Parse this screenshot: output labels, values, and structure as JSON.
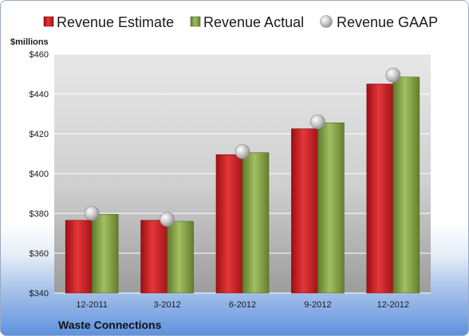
{
  "chart_data": {
    "type": "bar",
    "company": "Waste Connections",
    "ylabel": "$millions",
    "ylim": [
      340,
      460
    ],
    "ytick_values": [
      340,
      360,
      380,
      400,
      420,
      440,
      460
    ],
    "ytick_labels": [
      "$340",
      "$360",
      "$380",
      "$400",
      "$420",
      "$440",
      "$460"
    ],
    "categories": [
      "12-2011",
      "3-2012",
      "6-2012",
      "9-2012",
      "12-2012"
    ],
    "series": [
      {
        "name": "Revenue Estimate",
        "type": "bar",
        "color": "#d9232a",
        "values": [
          376.5,
          376.5,
          409.5,
          422.5,
          445.0
        ]
      },
      {
        "name": "Revenue Actual",
        "type": "bar",
        "color": "#8aa74a",
        "values": [
          379.5,
          376.0,
          410.5,
          425.5,
          448.5
        ]
      },
      {
        "name": "Revenue GAAP",
        "type": "marker",
        "color": "#c8c8c8",
        "values": [
          380.0,
          377.0,
          411.0,
          426.0,
          449.5
        ]
      }
    ],
    "grid": true,
    "legend_position": "top"
  }
}
